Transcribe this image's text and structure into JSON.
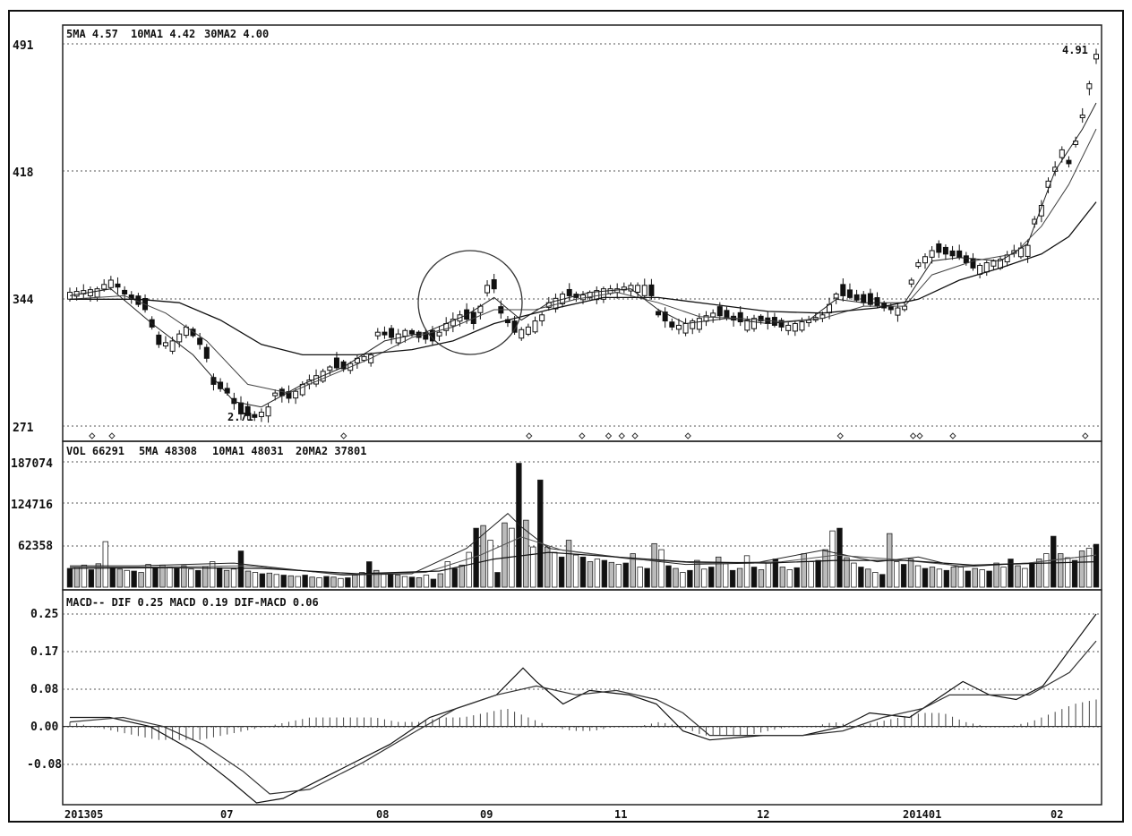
{
  "chart_data": [
    {
      "type": "candlestick",
      "panel": "price",
      "legend": {
        "ma5": "5MA 4.57",
        "ma10": "10MA1 4.42",
        "ma30": "30MA2 4.00"
      },
      "y_ticks": [
        "491",
        "418",
        "344",
        "271"
      ],
      "ylim": [
        2.71,
        4.91
      ],
      "annotations": {
        "high": "4.91",
        "low": "2.71"
      },
      "x_ticks": [
        "201305",
        "07",
        "08",
        "09",
        "11",
        "12",
        "201401",
        "02"
      ],
      "circle_highlight": "around 09 breakout",
      "path": [
        [
          0,
          3.48
        ],
        [
          4,
          3.5
        ],
        [
          6,
          3.55
        ],
        [
          8,
          3.47
        ],
        [
          9,
          3.44
        ],
        [
          11,
          3.38
        ],
        [
          13,
          3.18
        ],
        [
          15,
          3.2
        ],
        [
          17,
          3.28
        ],
        [
          19,
          3.18
        ],
        [
          20,
          3.1
        ],
        [
          21,
          2.95
        ],
        [
          23,
          2.9
        ],
        [
          25,
          2.78
        ],
        [
          27,
          2.76
        ],
        [
          29,
          2.82
        ],
        [
          30,
          2.9
        ],
        [
          32,
          2.87
        ],
        [
          34,
          2.95
        ],
        [
          36,
          3.0
        ],
        [
          38,
          3.05
        ],
        [
          40,
          3.04
        ],
        [
          42,
          3.1
        ],
        [
          44,
          3.12
        ],
        [
          45,
          3.25
        ],
        [
          47,
          3.22
        ],
        [
          49,
          3.26
        ],
        [
          51,
          3.22
        ],
        [
          53,
          3.2
        ],
        [
          55,
          3.3
        ],
        [
          57,
          3.35
        ],
        [
          59,
          3.3
        ],
        [
          60,
          3.4
        ],
        [
          61,
          3.52
        ],
        [
          62,
          3.5
        ],
        [
          63,
          3.36
        ],
        [
          65,
          3.25
        ],
        [
          67,
          3.28
        ],
        [
          69,
          3.35
        ],
        [
          70,
          3.42
        ],
        [
          72,
          3.47
        ],
        [
          74,
          3.45
        ],
        [
          76,
          3.48
        ],
        [
          78,
          3.5
        ],
        [
          80,
          3.5
        ],
        [
          82,
          3.52
        ],
        [
          84,
          3.52
        ],
        [
          85,
          3.46
        ],
        [
          86,
          3.35
        ],
        [
          88,
          3.28
        ],
        [
          90,
          3.3
        ],
        [
          92,
          3.33
        ],
        [
          94,
          3.36
        ],
        [
          96,
          3.33
        ],
        [
          98,
          3.31
        ],
        [
          100,
          3.33
        ],
        [
          102,
          3.3
        ],
        [
          104,
          3.28
        ],
        [
          106,
          3.3
        ],
        [
          108,
          3.32
        ],
        [
          110,
          3.35
        ],
        [
          112,
          3.47
        ],
        [
          114,
          3.45
        ],
        [
          116,
          3.42
        ],
        [
          118,
          3.4
        ],
        [
          120,
          3.38
        ],
        [
          122,
          3.4
        ],
        [
          123,
          3.55
        ],
        [
          124,
          3.65
        ],
        [
          126,
          3.72
        ],
        [
          128,
          3.7
        ],
        [
          130,
          3.68
        ],
        [
          132,
          3.62
        ],
        [
          134,
          3.65
        ],
        [
          136,
          3.67
        ],
        [
          138,
          3.72
        ],
        [
          140,
          3.75
        ],
        [
          141,
          3.9
        ],
        [
          142,
          3.98
        ],
        [
          143,
          4.12
        ],
        [
          144,
          4.2
        ],
        [
          145,
          4.3
        ],
        [
          146,
          4.22
        ],
        [
          147,
          4.35
        ],
        [
          148,
          4.5
        ],
        [
          149,
          4.68
        ],
        [
          150,
          4.85
        ]
      ],
      "ma5": [
        [
          0,
          3.46
        ],
        [
          6,
          3.5
        ],
        [
          12,
          3.3
        ],
        [
          18,
          3.12
        ],
        [
          24,
          2.85
        ],
        [
          28,
          2.82
        ],
        [
          34,
          2.95
        ],
        [
          40,
          3.05
        ],
        [
          46,
          3.2
        ],
        [
          52,
          3.25
        ],
        [
          58,
          3.35
        ],
        [
          62,
          3.45
        ],
        [
          66,
          3.32
        ],
        [
          70,
          3.42
        ],
        [
          76,
          3.48
        ],
        [
          82,
          3.5
        ],
        [
          86,
          3.38
        ],
        [
          90,
          3.3
        ],
        [
          96,
          3.33
        ],
        [
          102,
          3.3
        ],
        [
          108,
          3.32
        ],
        [
          112,
          3.44
        ],
        [
          116,
          3.42
        ],
        [
          122,
          3.42
        ],
        [
          126,
          3.66
        ],
        [
          130,
          3.68
        ],
        [
          136,
          3.66
        ],
        [
          140,
          3.76
        ],
        [
          144,
          4.18
        ],
        [
          148,
          4.42
        ],
        [
          150,
          4.57
        ]
      ],
      "ma10": [
        [
          0,
          3.44
        ],
        [
          8,
          3.46
        ],
        [
          14,
          3.36
        ],
        [
          20,
          3.2
        ],
        [
          26,
          2.95
        ],
        [
          32,
          2.9
        ],
        [
          38,
          3.0
        ],
        [
          44,
          3.1
        ],
        [
          50,
          3.22
        ],
        [
          56,
          3.28
        ],
        [
          62,
          3.38
        ],
        [
          68,
          3.38
        ],
        [
          74,
          3.44
        ],
        [
          80,
          3.48
        ],
        [
          86,
          3.42
        ],
        [
          92,
          3.34
        ],
        [
          98,
          3.33
        ],
        [
          104,
          3.31
        ],
        [
          110,
          3.33
        ],
        [
          116,
          3.4
        ],
        [
          122,
          3.4
        ],
        [
          126,
          3.58
        ],
        [
          132,
          3.66
        ],
        [
          138,
          3.7
        ],
        [
          142,
          3.86
        ],
        [
          146,
          4.1
        ],
        [
          150,
          4.42
        ]
      ],
      "ma30": [
        [
          0,
          3.44
        ],
        [
          10,
          3.44
        ],
        [
          16,
          3.42
        ],
        [
          22,
          3.32
        ],
        [
          28,
          3.18
        ],
        [
          34,
          3.12
        ],
        [
          42,
          3.12
        ],
        [
          50,
          3.15
        ],
        [
          56,
          3.2
        ],
        [
          62,
          3.3
        ],
        [
          70,
          3.38
        ],
        [
          78,
          3.45
        ],
        [
          86,
          3.45
        ],
        [
          94,
          3.41
        ],
        [
          102,
          3.37
        ],
        [
          110,
          3.36
        ],
        [
          118,
          3.39
        ],
        [
          124,
          3.44
        ],
        [
          130,
          3.55
        ],
        [
          136,
          3.62
        ],
        [
          142,
          3.7
        ],
        [
          146,
          3.8
        ],
        [
          150,
          4.0
        ]
      ]
    },
    {
      "type": "bar",
      "panel": "volume",
      "legend": {
        "vol": "VOL 66291",
        "ma5": "5MA 48308",
        "ma10": "10MA1 48031",
        "ma20": "20MA2 37801"
      },
      "y_ticks": [
        "187074",
        "124716",
        "62358"
      ],
      "ylim": [
        0,
        187074
      ],
      "values": [
        28000,
        30000,
        33000,
        26000,
        35000,
        68000,
        30000,
        27000,
        25000,
        24000,
        22000,
        34000,
        30000,
        33000,
        30000,
        28000,
        32000,
        27000,
        25000,
        31000,
        38000,
        29000,
        25000,
        27000,
        54000,
        24000,
        22000,
        20000,
        21000,
        19000,
        18000,
        17000,
        16000,
        18000,
        15000,
        14000,
        16000,
        15000,
        13000,
        14000,
        18000,
        22000,
        38000,
        25000,
        20000,
        19000,
        18000,
        16000,
        15000,
        14000,
        18000,
        12000,
        20000,
        38000,
        28000,
        33000,
        52000,
        88000,
        92000,
        70000,
        22000,
        96000,
        88000,
        185000,
        100000,
        60000,
        160000,
        60000,
        52000,
        45000,
        70000,
        48000,
        45000,
        38000,
        42000,
        40000,
        37000,
        34000,
        36000,
        50000,
        30000,
        28000,
        65000,
        56000,
        32000,
        28000,
        22000,
        25000,
        40000,
        27000,
        30000,
        45000,
        35000,
        25000,
        28000,
        47000,
        30000,
        26000,
        36000,
        42000,
        30000,
        26000,
        29000,
        50000,
        38000,
        40000,
        56000,
        84000,
        88000,
        44000,
        36000,
        30000,
        27000,
        22000,
        19000,
        80000,
        38000,
        34000,
        42000,
        32000,
        28000,
        30000,
        27000,
        25000,
        30000,
        30000,
        24000,
        28000,
        26000,
        24000,
        36000,
        30000,
        42000,
        32000,
        28000,
        35000,
        42000,
        50000,
        76000,
        50000,
        44000,
        40000,
        54000,
        58000,
        64000
      ],
      "ma_lines": {
        "ma5": [
          [
            0,
            32000
          ],
          [
            10,
            32000
          ],
          [
            24,
            36000
          ],
          [
            40,
            18000
          ],
          [
            50,
            20000
          ],
          [
            58,
            58000
          ],
          [
            64,
            110000
          ],
          [
            66,
            90000
          ],
          [
            70,
            58000
          ],
          [
            80,
            45000
          ],
          [
            90,
            34000
          ],
          [
            100,
            36000
          ],
          [
            110,
            55000
          ],
          [
            118,
            38000
          ],
          [
            124,
            45000
          ],
          [
            130,
            30000
          ],
          [
            140,
            36000
          ],
          [
            150,
            48000
          ]
        ],
        "ma10": [
          [
            0,
            30000
          ],
          [
            12,
            30000
          ],
          [
            26,
            32000
          ],
          [
            40,
            19000
          ],
          [
            52,
            22000
          ],
          [
            60,
            48000
          ],
          [
            66,
            75000
          ],
          [
            72,
            55000
          ],
          [
            82,
            42000
          ],
          [
            92,
            36000
          ],
          [
            104,
            38000
          ],
          [
            112,
            48000
          ],
          [
            120,
            42000
          ],
          [
            130,
            32000
          ],
          [
            140,
            36000
          ],
          [
            150,
            48000
          ]
        ],
        "ma20": [
          [
            0,
            28000
          ],
          [
            14,
            29000
          ],
          [
            28,
            28000
          ],
          [
            42,
            20000
          ],
          [
            54,
            24000
          ],
          [
            62,
            42000
          ],
          [
            70,
            52000
          ],
          [
            80,
            45000
          ],
          [
            90,
            38000
          ],
          [
            102,
            36000
          ],
          [
            112,
            40000
          ],
          [
            122,
            40000
          ],
          [
            132,
            33000
          ],
          [
            150,
            38000
          ]
        ]
      }
    },
    {
      "type": "line",
      "panel": "macd",
      "legend": "MACD-- DIF 0.25 MACD 0.19 DIF-MACD 0.06",
      "y_ticks": [
        "0.25",
        "0.17",
        "0.08",
        "0.00",
        "-0.08"
      ],
      "ylim": [
        -0.17,
        0.25
      ],
      "dif": [
        [
          0,
          0.02
        ],
        [
          6,
          0.02
        ],
        [
          12,
          0.0
        ],
        [
          18,
          -0.05
        ],
        [
          24,
          -0.12
        ],
        [
          28,
          -0.17
        ],
        [
          32,
          -0.16
        ],
        [
          40,
          -0.1
        ],
        [
          48,
          -0.04
        ],
        [
          54,
          0.02
        ],
        [
          60,
          0.05
        ],
        [
          64,
          0.07
        ],
        [
          68,
          0.13
        ],
        [
          70,
          0.1
        ],
        [
          74,
          0.05
        ],
        [
          78,
          0.08
        ],
        [
          84,
          0.07
        ],
        [
          88,
          0.05
        ],
        [
          92,
          -0.01
        ],
        [
          96,
          -0.03
        ],
        [
          104,
          -0.02
        ],
        [
          110,
          -0.02
        ],
        [
          116,
          0.0
        ],
        [
          120,
          0.03
        ],
        [
          126,
          0.02
        ],
        [
          130,
          0.06
        ],
        [
          134,
          0.1
        ],
        [
          138,
          0.07
        ],
        [
          142,
          0.06
        ],
        [
          146,
          0.09
        ],
        [
          150,
          0.17
        ],
        [
          154,
          0.25
        ]
      ],
      "macd": [
        [
          0,
          0.01
        ],
        [
          8,
          0.02
        ],
        [
          14,
          0.0
        ],
        [
          20,
          -0.04
        ],
        [
          26,
          -0.1
        ],
        [
          30,
          -0.15
        ],
        [
          36,
          -0.14
        ],
        [
          44,
          -0.08
        ],
        [
          52,
          -0.01
        ],
        [
          58,
          0.04
        ],
        [
          64,
          0.07
        ],
        [
          70,
          0.09
        ],
        [
          76,
          0.07
        ],
        [
          82,
          0.08
        ],
        [
          88,
          0.06
        ],
        [
          92,
          0.03
        ],
        [
          96,
          -0.02
        ],
        [
          104,
          -0.02
        ],
        [
          110,
          -0.02
        ],
        [
          116,
          -0.01
        ],
        [
          122,
          0.02
        ],
        [
          128,
          0.04
        ],
        [
          132,
          0.07
        ],
        [
          138,
          0.07
        ],
        [
          144,
          0.07
        ],
        [
          150,
          0.12
        ],
        [
          154,
          0.19
        ]
      ],
      "histogram_sampled": [
        0.01,
        0.0,
        -0.01,
        -0.02,
        -0.03,
        -0.03,
        -0.03,
        -0.02,
        -0.01,
        0.0,
        0.01,
        0.02,
        0.02,
        0.02,
        0.02,
        0.01,
        0.01,
        0.02,
        0.02,
        0.03,
        0.04,
        0.02,
        0.0,
        -0.01,
        -0.01,
        0.0,
        0.0,
        0.01,
        0.0,
        -0.02,
        -0.02,
        -0.02,
        -0.01,
        0.0,
        0.0,
        0.01,
        0.0,
        0.01,
        0.02,
        0.03,
        0.03,
        0.01,
        0.0,
        0.0,
        0.01,
        0.03,
        0.05,
        0.06
      ]
    }
  ]
}
